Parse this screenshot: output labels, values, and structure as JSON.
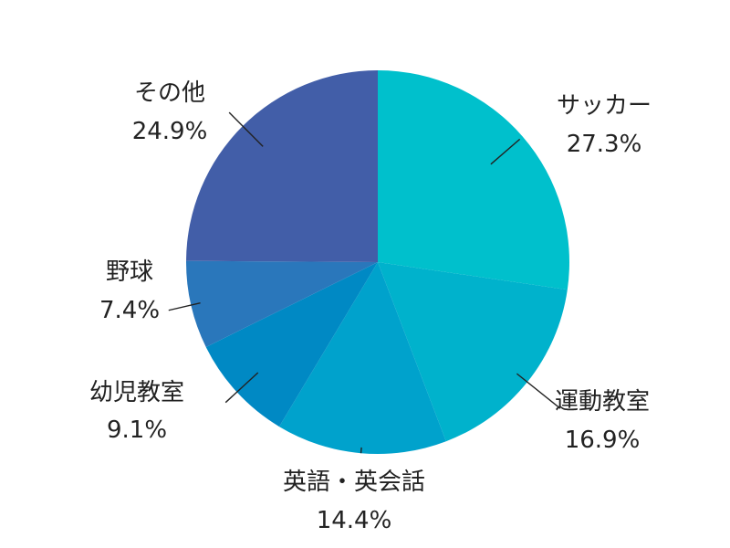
{
  "chart_data": {
    "type": "pie",
    "title": "",
    "slices": [
      {
        "label": "サッカー",
        "value": 27.3,
        "value_text": "27.3%",
        "color": "#00c0cc"
      },
      {
        "label": "運動教室",
        "value": 16.9,
        "value_text": "16.9%",
        "color": "#00b2cc"
      },
      {
        "label": "英語・英会話",
        "value": 14.4,
        "value_text": "14.4%",
        "color": "#00a2cc"
      },
      {
        "label": "幼児教室",
        "value": 9.1,
        "value_text": "9.1%",
        "color": "#0089c4"
      },
      {
        "label": "野球",
        "value": 7.4,
        "value_text": "7.4%",
        "color": "#2a77bb"
      },
      {
        "label": "その他",
        "value": 24.9,
        "value_text": "24.9%",
        "color": "#425ea8"
      }
    ],
    "start_angle": "12 o'clock",
    "direction": "clockwise",
    "legend": "none"
  }
}
